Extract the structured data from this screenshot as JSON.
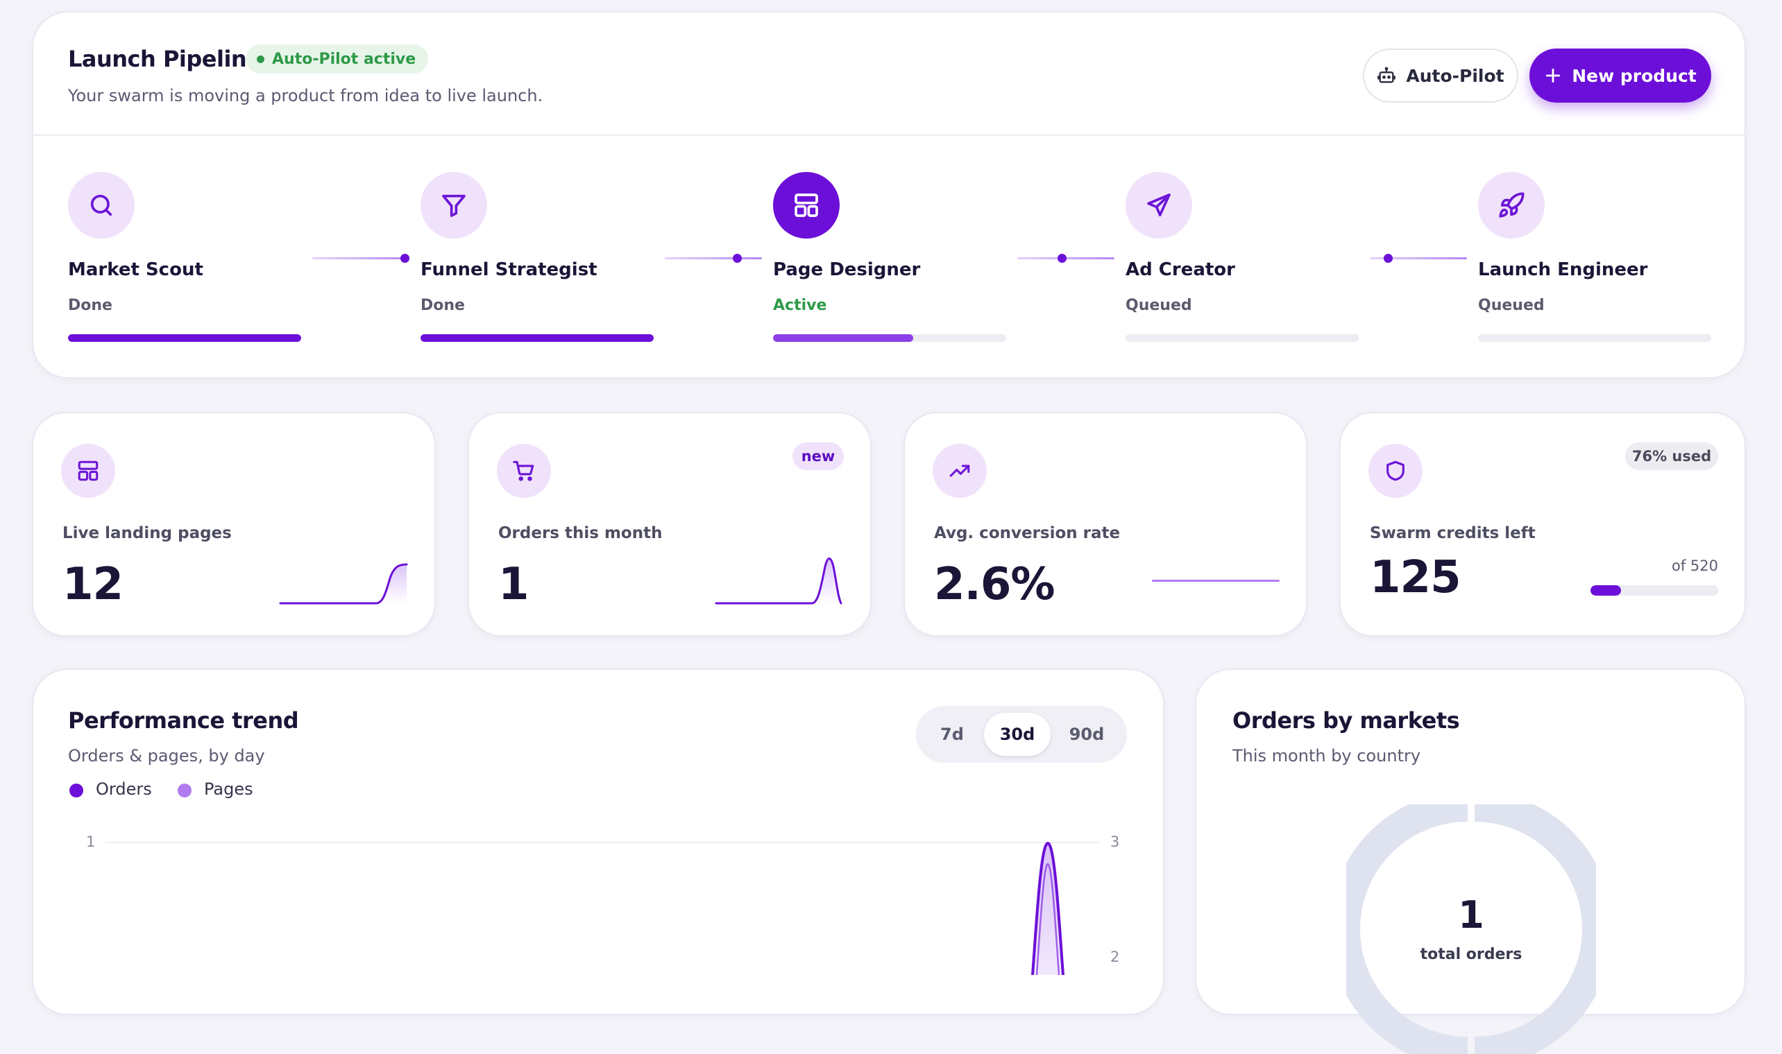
{
  "pipeline": {
    "title": "Launch Pipeline",
    "badge": "Auto-Pilot active",
    "subtitle": "Your swarm is moving a product from idea to live launch.",
    "autopilot_button": "Auto-Pilot",
    "new_button": "New product",
    "stages": [
      {
        "name": "Market Scout",
        "status": "Done",
        "progress": 1.0,
        "icon": "search-icon"
      },
      {
        "name": "Funnel Strategist",
        "status": "Done",
        "progress": 1.0,
        "icon": "filter-icon"
      },
      {
        "name": "Page Designer",
        "status": "Active",
        "progress": 0.6,
        "icon": "layout-icon"
      },
      {
        "name": "Ad Creator",
        "status": "Queued",
        "progress": 0,
        "icon": "send-icon"
      },
      {
        "name": "Launch Engineer",
        "status": "Queued",
        "progress": 0,
        "icon": "rocket-icon"
      }
    ]
  },
  "stats": [
    {
      "label": "Live landing pages",
      "value": "12",
      "icon": "layout-icon"
    },
    {
      "label": "Orders this month",
      "value": "1",
      "icon": "cart-icon",
      "badge": "new"
    },
    {
      "label": "Avg. conversion rate",
      "value": "2.6%",
      "icon": "trending-up-icon"
    },
    {
      "label": "Swarm credits left",
      "value": "125",
      "icon": "shield-icon",
      "badge": "76% used",
      "total": "of 520",
      "credits_remaining_fraction": 0.24
    }
  ],
  "trend": {
    "title": "Performance trend",
    "subtitle": "Orders & pages, by day",
    "ranges": [
      "7d",
      "30d",
      "90d"
    ],
    "selected_range": "30d",
    "legend": [
      "Orders",
      "Pages"
    ],
    "left_axis_tick": "1",
    "right_axis_ticks": [
      "3",
      "2"
    ]
  },
  "markets": {
    "title": "Orders by markets",
    "subtitle": "This month by country",
    "total_value": "1",
    "total_label": "total orders"
  },
  "colors": {
    "accent": "#6c0fd8",
    "accent_light": "#b07cf0",
    "success": "#2e9a47",
    "donut": "#dfe3ef"
  }
}
